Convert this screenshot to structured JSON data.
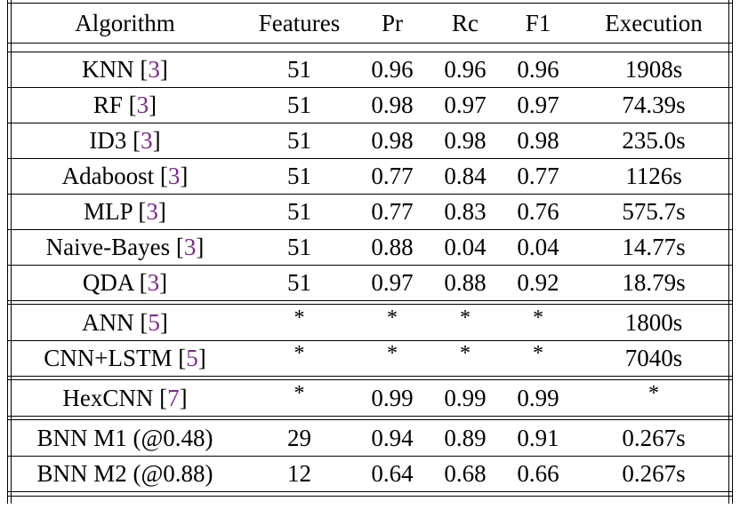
{
  "table": {
    "headers": [
      "Algorithm",
      "Features",
      "Pr",
      "Rc",
      "F1",
      "Execution"
    ],
    "groups": [
      [
        {
          "algorithm": "KNN",
          "ref": "3",
          "features": "51",
          "pr": "0.96",
          "rc": "0.96",
          "f1": "0.96",
          "execution": "1908s"
        },
        {
          "algorithm": "RF",
          "ref": "3",
          "features": "51",
          "pr": "0.98",
          "rc": "0.97",
          "f1": "0.97",
          "execution": "74.39s"
        },
        {
          "algorithm": "ID3",
          "ref": "3",
          "features": "51",
          "pr": "0.98",
          "rc": "0.98",
          "f1": "0.98",
          "execution": "235.0s"
        },
        {
          "algorithm": "Adaboost",
          "ref": "3",
          "features": "51",
          "pr": "0.77",
          "rc": "0.84",
          "f1": "0.77",
          "execution": "1126s"
        },
        {
          "algorithm": "MLP",
          "ref": "3",
          "features": "51",
          "pr": "0.77",
          "rc": "0.83",
          "f1": "0.76",
          "execution": "575.7s"
        },
        {
          "algorithm": "Naive-Bayes",
          "ref": "3",
          "features": "51",
          "pr": "0.88",
          "rc": "0.04",
          "f1": "0.04",
          "execution": "14.77s"
        },
        {
          "algorithm": "QDA",
          "ref": "3",
          "features": "51",
          "pr": "0.97",
          "rc": "0.88",
          "f1": "0.92",
          "execution": "18.79s"
        }
      ],
      [
        {
          "algorithm": "ANN",
          "ref": "5",
          "features": "*",
          "pr": "*",
          "rc": "*",
          "f1": "*",
          "execution": "1800s"
        },
        {
          "algorithm": "CNN+LSTM",
          "ref": "5",
          "features": "*",
          "pr": "*",
          "rc": "*",
          "f1": "*",
          "execution": "7040s"
        }
      ],
      [
        {
          "algorithm": "HexCNN",
          "ref": "7",
          "features": "*",
          "pr": "0.99",
          "rc": "0.99",
          "f1": "0.99",
          "execution": "*"
        }
      ],
      [
        {
          "algorithm": "BNN M1 (@0.48)",
          "ref": "",
          "features": "29",
          "pr": "0.94",
          "rc": "0.89",
          "f1": "0.91",
          "execution": "0.267s"
        },
        {
          "algorithm": "BNN M2 (@0.88)",
          "ref": "",
          "features": "12",
          "pr": "0.64",
          "rc": "0.68",
          "f1": "0.66",
          "execution": "0.267s"
        }
      ]
    ]
  }
}
